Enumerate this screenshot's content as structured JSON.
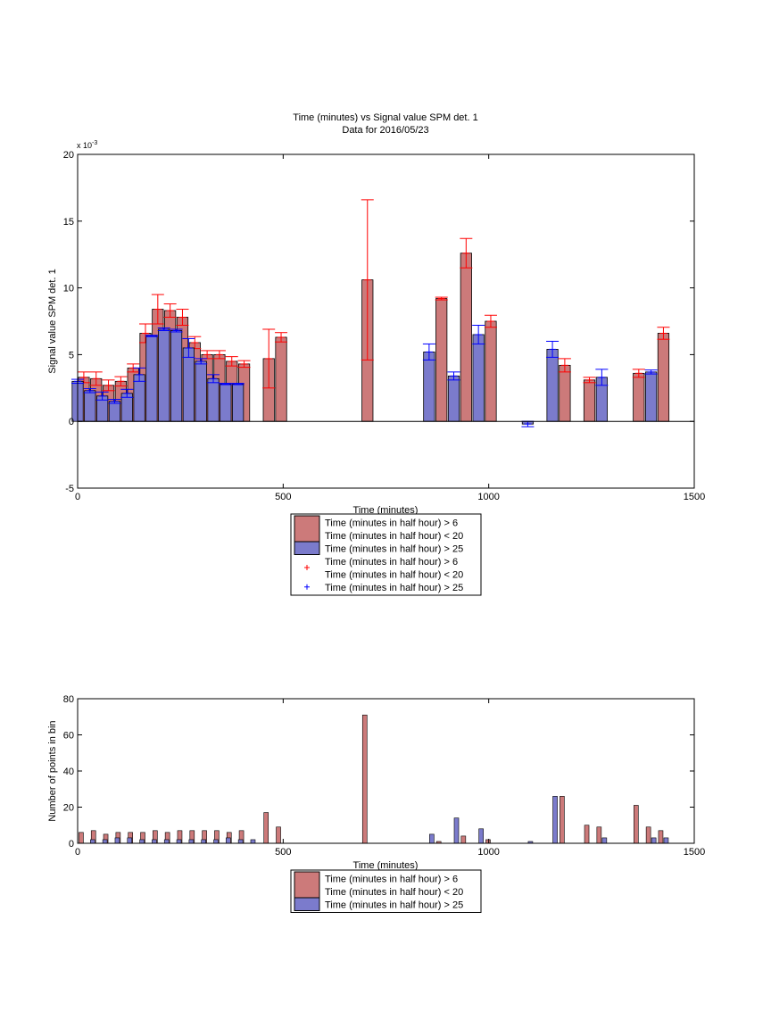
{
  "chart_data": [
    {
      "type": "bar",
      "title": "Time (minutes) vs Signal value SPM det. 1",
      "subtitle": "Data for 2016/05/23",
      "xlabel": "Time (minutes)",
      "ylabel": "Signal value SPM det. 1",
      "y_multiplier": "x 10",
      "y_exponent": "-3",
      "xlim": [
        0,
        1500
      ],
      "ylim": [
        -5,
        20
      ],
      "xticks": [
        "0",
        "500",
        "1000",
        "1500"
      ],
      "yticks": [
        "-5",
        "0",
        "5",
        "10",
        "15",
        "20"
      ],
      "legend_position": "bottom",
      "legend": [
        {
          "kind": "bar",
          "color": "#cc7a7a",
          "lines": [
            "Time (minutes in half hour) > 6",
            "Time (minutes in half hour) < 20"
          ]
        },
        {
          "kind": "bar",
          "color": "#7b7bcc",
          "lines": [
            "Time (minutes in half hour) > 25"
          ]
        },
        {
          "kind": "marker",
          "color": "#ff0000",
          "lines": [
            "Time (minutes in half hour) > 6",
            "Time (minutes in half hour) < 20"
          ]
        },
        {
          "kind": "marker",
          "color": "#0000ff",
          "lines": [
            "Time (minutes in half hour) > 25"
          ]
        }
      ],
      "series": [
        {
          "name": "Time (minutes in half hour) > 6, Time (minutes in half hour) < 20",
          "color": "#cc7a7a",
          "err_color": "#ff0000",
          "x": [
            15,
            45,
            75,
            105,
            135,
            165,
            195,
            225,
            255,
            285,
            315,
            345,
            375,
            405,
            465,
            495,
            705,
            885,
            945,
            1005,
            1185,
            1245,
            1365,
            1425
          ],
          "values": [
            3.3,
            3.2,
            2.7,
            3.0,
            4.0,
            6.6,
            8.4,
            8.3,
            7.8,
            5.9,
            5.0,
            5.0,
            4.5,
            4.3,
            4.7,
            6.3,
            10.6,
            9.2,
            12.6,
            7.5,
            4.2,
            3.1,
            3.6,
            6.6
          ],
          "err": [
            0.4,
            0.5,
            0.4,
            0.35,
            0.3,
            0.7,
            1.1,
            0.5,
            0.6,
            0.45,
            0.3,
            0.3,
            0.35,
            0.25,
            2.2,
            0.35,
            6.0,
            0.1,
            1.1,
            0.45,
            0.5,
            0.2,
            0.3,
            0.45
          ]
        },
        {
          "name": "Time (minutes in half hour) > 25",
          "color": "#7b7bcc",
          "err_color": "#0000ff",
          "x": [
            0,
            30,
            60,
            90,
            120,
            150,
            180,
            210,
            240,
            270,
            300,
            330,
            360,
            390,
            855,
            915,
            975,
            1095,
            1155,
            1275,
            1395
          ],
          "values": [
            3.0,
            2.3,
            1.9,
            1.5,
            2.1,
            3.5,
            6.4,
            6.9,
            6.8,
            5.5,
            4.5,
            3.2,
            2.8,
            2.8,
            5.2,
            3.4,
            6.5,
            -0.2,
            5.4,
            3.3,
            3.7
          ],
          "err": [
            0.15,
            0.15,
            0.3,
            0.15,
            0.3,
            0.5,
            0.05,
            0.1,
            0.1,
            0.7,
            0.2,
            0.3,
            0.05,
            0.05,
            0.6,
            0.3,
            0.7,
            0.2,
            0.6,
            0.6,
            0.15
          ]
        }
      ]
    },
    {
      "type": "bar",
      "xlabel": "Time (minutes)",
      "ylabel": "Number of points in bin",
      "xlim": [
        0,
        1500
      ],
      "ylim": [
        0,
        80
      ],
      "xticks": [
        "0",
        "500",
        "1000",
        "1500"
      ],
      "yticks": [
        "0",
        "20",
        "40",
        "60",
        "80"
      ],
      "legend_position": "bottom",
      "legend": [
        {
          "kind": "bar",
          "color": "#cc7a7a",
          "lines": [
            "Time (minutes in half hour) > 6",
            "Time (minutes in half hour) < 20"
          ]
        },
        {
          "kind": "bar",
          "color": "#7b7bcc",
          "lines": [
            "Time (minutes in half hour) > 25"
          ]
        }
      ],
      "series": [
        {
          "name": "Time (minutes in half hour) > 6, Time (minutes in half hour) < 20",
          "color": "#cc7a7a",
          "x": [
            15,
            45,
            75,
            105,
            135,
            165,
            195,
            225,
            255,
            285,
            315,
            345,
            375,
            405,
            465,
            495,
            705,
            885,
            945,
            1005,
            1185,
            1245,
            1275,
            1365,
            1395,
            1425
          ],
          "values": [
            6,
            7,
            5,
            6,
            6,
            6,
            7,
            6,
            7,
            7,
            7,
            7,
            6,
            7,
            17,
            9,
            71,
            1,
            4,
            2,
            26,
            10,
            9,
            21,
            9,
            7
          ]
        },
        {
          "name": "Time (minutes in half hour) > 25",
          "color": "#7b7bcc",
          "x": [
            30,
            60,
            90,
            120,
            150,
            180,
            210,
            240,
            270,
            300,
            330,
            360,
            390,
            420,
            855,
            915,
            975,
            1095,
            1155,
            1275,
            1395,
            1425
          ],
          "values": [
            2,
            2,
            3,
            3,
            2,
            2,
            2,
            2,
            2,
            2,
            2,
            3,
            2,
            2,
            5,
            14,
            8,
            1,
            26,
            3,
            3,
            3
          ]
        }
      ]
    }
  ]
}
